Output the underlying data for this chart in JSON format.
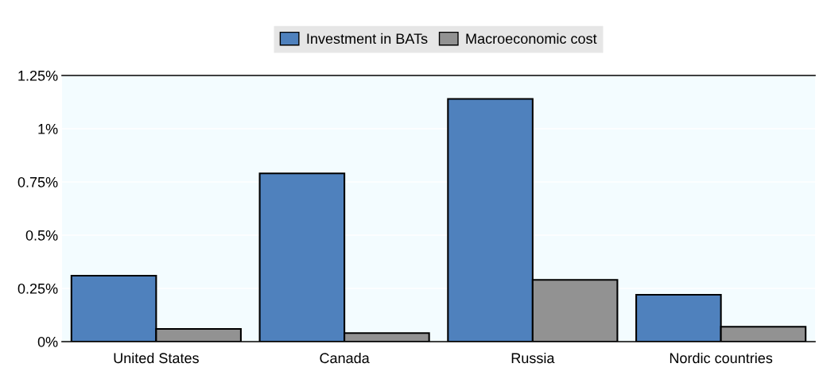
{
  "chart_data": {
    "type": "bar",
    "categories": [
      "United States",
      "Canada",
      "Russia",
      "Nordic countries"
    ],
    "series": [
      {
        "name": "Investment in BATs",
        "color": "#4f81bd",
        "values": [
          0.31,
          0.79,
          1.14,
          0.22
        ]
      },
      {
        "name": "Macroeconomic cost",
        "color": "#929292",
        "values": [
          0.06,
          0.04,
          0.29,
          0.07
        ]
      }
    ],
    "ylim": [
      0,
      1.25
    ],
    "yticks": [
      {
        "value": 0,
        "label": "0%"
      },
      {
        "value": 0.25,
        "label": "0.25%"
      },
      {
        "value": 0.5,
        "label": "0.5%"
      },
      {
        "value": 0.75,
        "label": "0.75%"
      },
      {
        "value": 1,
        "label": "1%"
      },
      {
        "value": 1.25,
        "label": "1.25%"
      }
    ],
    "grid": "y",
    "legend": "top"
  }
}
